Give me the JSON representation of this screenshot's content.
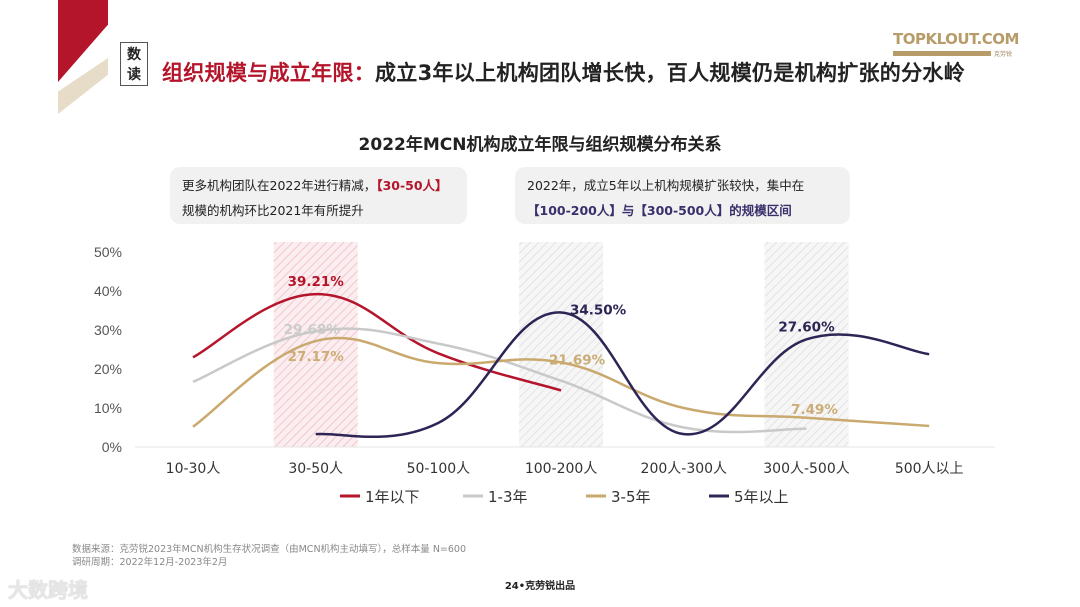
{
  "header": {
    "badge": "数读",
    "headline_highlight": "组织规模与成立年限：",
    "headline_rest": "成立3年以上机构团队增长快，百人规模仍是机构扩张的分水岭",
    "logo": "TOPKLOUT.COM",
    "logo_sub": "克劳锐"
  },
  "notes": [
    {
      "pre": "更多机构团队在2022年进行精减，",
      "hl": "【30-50人】",
      "post": "规模的机构环比2021年有所提升"
    },
    {
      "pre": "2022年，成立5年以上机构规模扩张较快，集中在",
      "hl": "【100-200人】与【300-500人】",
      "post": "的规模区间"
    }
  ],
  "chart_data": {
    "type": "line",
    "title": "2022年MCN机构成立年限与组织规模分布关系",
    "categories": [
      "10-30人",
      "30-50人",
      "50-100人",
      "100-200人",
      "200人-300人",
      "300人-500人",
      "500人以上"
    ],
    "ylim": [
      0,
      50
    ],
    "yticks": [
      "0%",
      "10%",
      "20%",
      "30%",
      "40%",
      "50%"
    ],
    "highlighted_categories": [
      "30-50人",
      "100-200人",
      "300人-500人"
    ],
    "legend_position": "bottom",
    "grid": false,
    "series": [
      {
        "name": "1年以下",
        "color": "#b5152b",
        "values": [
          23,
          39.21,
          24,
          14.5,
          null,
          null,
          null
        ],
        "labels": {
          "1": "39.21%"
        }
      },
      {
        "name": "1-3年",
        "color": "#c9c9c9",
        "values": [
          16.7,
          29.68,
          26.5,
          17,
          5,
          4.7,
          null
        ],
        "labels": {
          "1": "29.68%"
        }
      },
      {
        "name": "3-5年",
        "color": "#c9a96e",
        "values": [
          5.2,
          27.17,
          21.5,
          21.69,
          10,
          7.49,
          5.4
        ],
        "labels": {
          "1": "27.17%",
          "3": "21.69%",
          "5": "7.49%"
        }
      },
      {
        "name": "5年以上",
        "color": "#2e2456",
        "values": [
          null,
          3.3,
          6.2,
          34.5,
          3.3,
          27.6,
          23.8
        ],
        "labels": {
          "3": "34.50%",
          "5": "27.60%"
        }
      }
    ]
  },
  "footer": {
    "source": "数据来源：克劳锐2023年MCN机构生存状况调查（由MCN机构主动填写），总样本量 N=600",
    "period": "调研周期：2022年12月-2023年2月",
    "page": "24•克劳锐出品",
    "watermark": "大数跨境"
  }
}
